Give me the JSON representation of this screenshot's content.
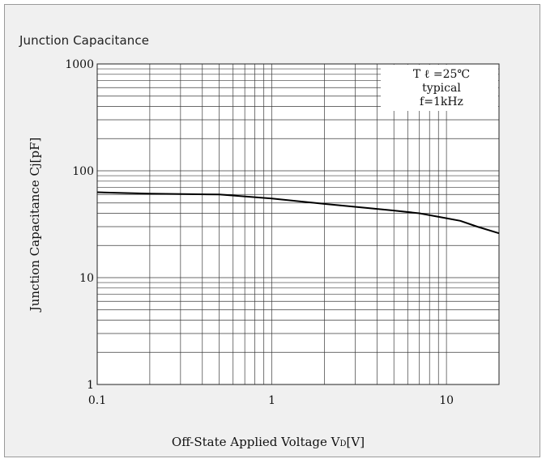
{
  "chart_data": {
    "type": "line",
    "title": "Junction Capacitance",
    "xlabel": "Off-State Applied Voltage V",
    "xlabel_sub": "D",
    "xlabel_unit": "[V]",
    "ylabel": "Junction Capacitance Cj[pF]",
    "x_scale": "log",
    "y_scale": "log",
    "xlim": [
      0.1,
      20
    ],
    "ylim": [
      1,
      1000
    ],
    "x_ticks": [
      0.1,
      1,
      10
    ],
    "x_tick_labels": [
      "0.1",
      "1",
      "10"
    ],
    "y_ticks": [
      1,
      10,
      100,
      1000
    ],
    "y_tick_labels": [
      "1",
      "10",
      "100",
      "1000"
    ],
    "grid": true,
    "annotation_lines": [
      "T ℓ =25℃",
      "typical",
      "f=1kHz"
    ],
    "series": [
      {
        "x": [
          0.1,
          0.2,
          0.5,
          1,
          2,
          3,
          5,
          7,
          10,
          12,
          15,
          20
        ],
        "y": [
          63,
          61,
          60,
          55,
          49,
          46,
          42.5,
          40,
          36,
          34,
          30,
          26
        ]
      }
    ]
  },
  "colors": {
    "background": "#f0f0f0",
    "plot": "#ffffff",
    "grid": "#3a3a3a",
    "line": "#000000"
  }
}
